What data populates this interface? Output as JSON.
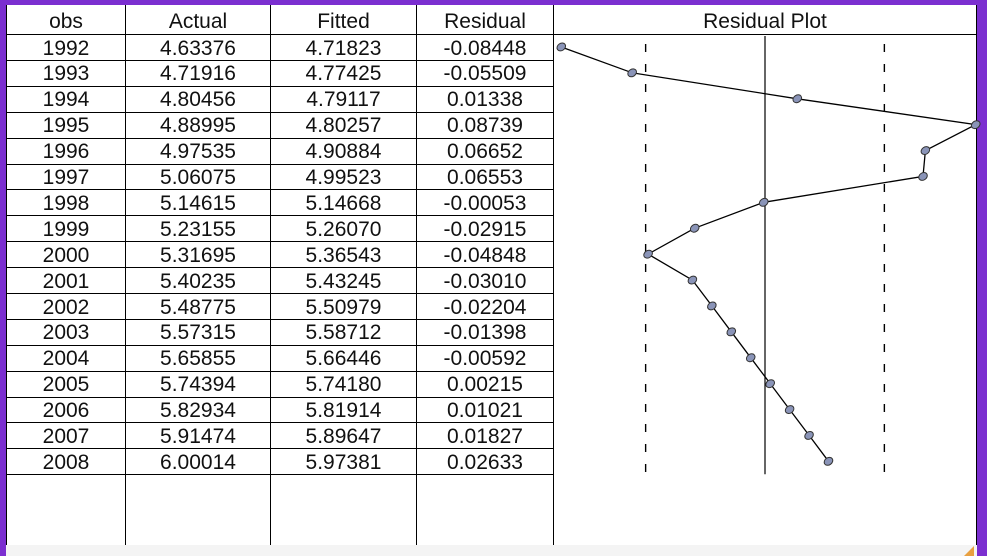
{
  "headers": {
    "obs": "obs",
    "actual": "Actual",
    "fitted": "Fitted",
    "residual": "Residual",
    "plot": "Residual Plot"
  },
  "rows": [
    {
      "obs": "1992",
      "actual": "4.63376",
      "fitted": "4.71823",
      "residual": "-0.08448"
    },
    {
      "obs": "1993",
      "actual": "4.71916",
      "fitted": "4.77425",
      "residual": "-0.05509"
    },
    {
      "obs": "1994",
      "actual": "4.80456",
      "fitted": "4.79117",
      "residual": "0.01338"
    },
    {
      "obs": "1995",
      "actual": "4.88995",
      "fitted": "4.80257",
      "residual": "0.08739"
    },
    {
      "obs": "1996",
      "actual": "4.97535",
      "fitted": "4.90884",
      "residual": "0.06652"
    },
    {
      "obs": "1997",
      "actual": "5.06075",
      "fitted": "4.99523",
      "residual": "0.06553"
    },
    {
      "obs": "1998",
      "actual": "5.14615",
      "fitted": "5.14668",
      "residual": "-0.00053"
    },
    {
      "obs": "1999",
      "actual": "5.23155",
      "fitted": "5.26070",
      "residual": "-0.02915"
    },
    {
      "obs": "2000",
      "actual": "5.31695",
      "fitted": "5.36543",
      "residual": "-0.04848"
    },
    {
      "obs": "2001",
      "actual": "5.40235",
      "fitted": "5.43245",
      "residual": "-0.03010"
    },
    {
      "obs": "2002",
      "actual": "5.48775",
      "fitted": "5.50979",
      "residual": "-0.02204"
    },
    {
      "obs": "2003",
      "actual": "5.57315",
      "fitted": "5.58712",
      "residual": "-0.01398"
    },
    {
      "obs": "2004",
      "actual": "5.65855",
      "fitted": "5.66446",
      "residual": "-0.00592"
    },
    {
      "obs": "2005",
      "actual": "5.74394",
      "fitted": "5.74180",
      "residual": "0.00215"
    },
    {
      "obs": "2006",
      "actual": "5.82934",
      "fitted": "5.81914",
      "residual": "0.01021"
    },
    {
      "obs": "2007",
      "actual": "5.91474",
      "fitted": "5.89647",
      "residual": "0.01827"
    },
    {
      "obs": "2008",
      "actual": "6.00014",
      "fitted": "5.97381",
      "residual": "0.02633"
    }
  ],
  "chart_data": {
    "type": "line",
    "title": "Residual Plot",
    "x": [
      "1992",
      "1993",
      "1994",
      "1995",
      "1996",
      "1997",
      "1998",
      "1999",
      "2000",
      "2001",
      "2002",
      "2003",
      "2004",
      "2005",
      "2006",
      "2007",
      "2008"
    ],
    "series": [
      {
        "name": "Residual",
        "values": [
          -0.08448,
          -0.05509,
          0.01338,
          0.08739,
          0.06652,
          0.06553,
          -0.00053,
          -0.02915,
          -0.04848,
          -0.0301,
          -0.02204,
          -0.01398,
          -0.00592,
          0.00215,
          0.01021,
          0.01827,
          0.02633
        ]
      }
    ],
    "xlim": [
      -0.0875,
      0.0875
    ],
    "reference_lines": {
      "zero": 0,
      "dashed_bands": [
        -0.0495,
        0.0495
      ]
    },
    "orientation": "horizontal-values-vertical-observations",
    "line_color": "#000000",
    "marker_color": "#8a94b8"
  },
  "colors": {
    "frame_border": "#7b2fd0",
    "resize_marker": "#e8a040"
  }
}
